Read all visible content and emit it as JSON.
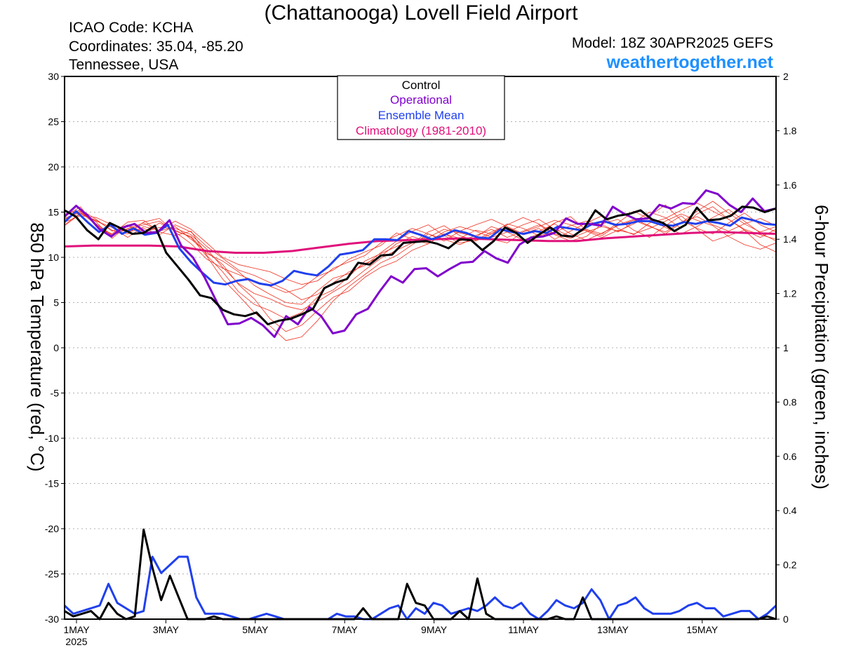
{
  "header": {
    "title": "(Chattanooga) Lovell Field Airport",
    "icao": "ICAO Code: KCHA",
    "coords": "Coordinates: 35.04, -85.20",
    "region": "Tennessee, USA",
    "model": "Model: 18Z 30APR2025 GEFS",
    "site": "weathertogether.net"
  },
  "colors": {
    "control": "#000000",
    "operational": "#8000cc",
    "ensemble_mean": "#2040ee",
    "climatology": "#e0107a",
    "members_temp": "#f03020",
    "members_precip": "#22dd22"
  },
  "chart_data": {
    "type": "line",
    "left_axis": {
      "label": "850 hPa Temperature (red, °C)",
      "range": [
        -30,
        30
      ],
      "ticks": [
        "30",
        "25",
        "20",
        "15",
        "10",
        "5",
        "0",
        "-5",
        "-10",
        "-15",
        "-20",
        "-25",
        "-30"
      ]
    },
    "right_axis": {
      "label": "6-hour Precipitation (green, inches)",
      "range": [
        0,
        2
      ],
      "ticks": [
        "2",
        "1.8",
        "1.6",
        "1.4",
        "1.2",
        "1",
        "0.8",
        "0.6",
        "0.4",
        "0.2",
        "0"
      ]
    },
    "x_ticks": [
      "1MAY",
      "3MAY",
      "5MAY",
      "7MAY",
      "9MAY",
      "11MAY",
      "13MAY",
      "15MAY"
    ],
    "x_sub": "2025",
    "legend": [
      "Control",
      "Operational",
      "Ensemble Mean",
      "Climatology (1981-2010)"
    ],
    "grid": true,
    "temperature": {
      "control": [
        15.2,
        14.5,
        13.0,
        12.0,
        13.8,
        13.2,
        12.6,
        12.7,
        13.5,
        10.5,
        9.0,
        7.5,
        5.8,
        5.5,
        4.2,
        3.7,
        3.5,
        3.9,
        2.6,
        3.0,
        3.2,
        3.7,
        4.3,
        6.6,
        7.2,
        7.6,
        9.4,
        9.2,
        10.2,
        10.3,
        11.6,
        11.7,
        11.8,
        11.5,
        11.0,
        12.0,
        11.9,
        10.8,
        11.8,
        13.3,
        12.7,
        11.6,
        12.5,
        13.3,
        12.4,
        12.3,
        13.2,
        15.2,
        14.2,
        14.6,
        14.8,
        15.2,
        14.2,
        13.8,
        12.9,
        13.6,
        15.5,
        14.1,
        14.2,
        14.6,
        15.6,
        15.5,
        15.0,
        15.4
      ],
      "operational": [
        14.5,
        15.7,
        14.6,
        13.1,
        12.3,
        13.3,
        13.7,
        12.7,
        12.8,
        14.1,
        11.3,
        10.0,
        7.8,
        5.2,
        2.6,
        2.7,
        3.3,
        2.5,
        1.2,
        3.5,
        2.6,
        4.5,
        3.5,
        1.6,
        1.9,
        3.7,
        4.3,
        6.2,
        7.9,
        7.2,
        8.7,
        8.8,
        7.9,
        8.7,
        9.4,
        9.5,
        10.7,
        9.9,
        9.4,
        11.4,
        12.2,
        12.3,
        12.7,
        14.3,
        13.7,
        13.7,
        13.5,
        15.6,
        14.8,
        14.2,
        14.3,
        15.8,
        15.4,
        16.0,
        15.9,
        17.4,
        17.0,
        15.8,
        15.0,
        16.5,
        15.1,
        15.4
      ],
      "ensemble_mean": [
        13.9,
        15.1,
        13.9,
        12.8,
        13.6,
        12.6,
        13.2,
        12.5,
        12.7,
        13.6,
        11.0,
        9.5,
        8.3,
        7.2,
        7.0,
        7.4,
        7.6,
        7.1,
        6.9,
        7.4,
        8.5,
        8.2,
        8.0,
        9.0,
        10.3,
        10.5,
        10.8,
        12.0,
        12.0,
        11.9,
        12.9,
        12.5,
        12.0,
        12.4,
        13.0,
        12.7,
        12.2,
        12.1,
        13.1,
        12.8,
        12.6,
        12.9,
        12.7,
        13.4,
        13.2,
        13.0,
        13.7,
        14.0,
        13.6,
        13.7,
        14.0,
        14.0,
        13.6,
        13.5,
        13.9,
        13.7,
        14.0,
        13.8,
        13.5,
        14.4,
        14.1,
        13.7,
        13.6
      ],
      "climatology": [
        11.2,
        11.3,
        11.3,
        11.3,
        11.2,
        10.7,
        10.5,
        10.5,
        10.7,
        11.1,
        11.5,
        11.8,
        11.9,
        12.0,
        12.1,
        12.0,
        11.9,
        11.8,
        11.8,
        12.1,
        12.3,
        12.5,
        12.7,
        12.8,
        12.7,
        12.6
      ],
      "members": [
        [
          14.2,
          15.0,
          13.6,
          12.4,
          13.2,
          13.8,
          12.9,
          13.4,
          12.0,
          10.6,
          9.2,
          7.0,
          5.4,
          3.2,
          1.8,
          2.5,
          4.1,
          5.6,
          6.3,
          7.8,
          8.9,
          9.6,
          10.8,
          11.5,
          12.6,
          11.8,
          12.4,
          13.1,
          12.2,
          12.9,
          13.6,
          12.5,
          11.8,
          12.3,
          13.7,
          14.2,
          13.0,
          12.2,
          13.5,
          14.6,
          13.1,
          11.8,
          12.4,
          13.0,
          11.4,
          10.6
        ],
        [
          13.5,
          14.8,
          14.1,
          13.0,
          12.6,
          13.9,
          14.3,
          12.8,
          11.5,
          9.8,
          8.8,
          8.1,
          7.4,
          6.8,
          6.1,
          6.6,
          7.9,
          8.6,
          9.8,
          10.6,
          11.3,
          12.7,
          12.0,
          11.5,
          12.6,
          12.1,
          13.0,
          12.6,
          13.7,
          13.2,
          12.4,
          12.8,
          13.5,
          14.0,
          13.6,
          12.8,
          13.9,
          15.0,
          14.4,
          13.2,
          14.8,
          15.6,
          14.2,
          13.1,
          12.5,
          12.0
        ],
        [
          14.8,
          15.2,
          13.9,
          12.1,
          13.5,
          12.6,
          13.8,
          13.0,
          12.2,
          10.1,
          7.6,
          5.8,
          3.9,
          2.4,
          0.8,
          1.2,
          3.0,
          5.2,
          6.8,
          8.1,
          9.4,
          10.2,
          11.4,
          12.6,
          12.0,
          11.4,
          12.2,
          13.4,
          12.8,
          11.9,
          12.6,
          13.8,
          14.5,
          13.0,
          12.4,
          13.6,
          14.2,
          13.5,
          12.6,
          13.8,
          15.1,
          16.2,
          14.9,
          13.7,
          12.8,
          13.4
        ],
        [
          13.9,
          14.6,
          14.4,
          13.6,
          12.8,
          13.2,
          12.5,
          13.6,
          12.8,
          11.2,
          9.9,
          8.6,
          8.0,
          7.2,
          6.4,
          5.3,
          5.9,
          7.2,
          8.4,
          9.1,
          10.5,
          11.8,
          12.9,
          13.6,
          12.4,
          11.6,
          11.9,
          12.8,
          13.6,
          14.4,
          13.7,
          12.6,
          12.1,
          12.8,
          13.4,
          12.9,
          13.7,
          14.6,
          15.8,
          14.1,
          13.2,
          12.6,
          13.8,
          14.9,
          13.6,
          12.8
        ],
        [
          14.5,
          15.6,
          13.4,
          12.6,
          13.9,
          14.1,
          12.8,
          12.4,
          12.9,
          10.2,
          8.4,
          6.2,
          4.8,
          4.1,
          3.2,
          3.9,
          5.6,
          6.4,
          7.9,
          9.6,
          10.4,
          11.2,
          11.9,
          12.2,
          13.1,
          12.7,
          12.3,
          12.0,
          11.6,
          12.8,
          13.4,
          14.1,
          13.6,
          12.9,
          12.2,
          13.0,
          12.6,
          13.2,
          14.0,
          14.8,
          14.1,
          13.5,
          12.3,
          11.4,
          10.9,
          11.6
        ],
        [
          13.6,
          14.9,
          14.0,
          13.3,
          12.2,
          13.4,
          13.0,
          14.0,
          13.1,
          11.6,
          10.0,
          9.2,
          8.8,
          8.4,
          7.6,
          7.0,
          7.4,
          8.8,
          9.5,
          10.2,
          11.6,
          12.4,
          13.2,
          12.6,
          11.8,
          12.9,
          13.6,
          14.2,
          13.4,
          12.6,
          13.2,
          12.0,
          12.9,
          13.8,
          14.6,
          13.2,
          12.5,
          13.8,
          14.3,
          15.2,
          16.0,
          15.1,
          14.2,
          13.0,
          12.2,
          13.1
        ],
        [
          14.0,
          15.3,
          14.2,
          12.9,
          13.6,
          12.8,
          13.3,
          13.2,
          12.5,
          10.9,
          8.9,
          7.1,
          6.0,
          5.4,
          4.6,
          4.2,
          5.1,
          6.2,
          7.2,
          8.6,
          9.9,
          10.8,
          11.6,
          12.8,
          13.5,
          12.4,
          11.8,
          12.6,
          13.3,
          12.5,
          12.9,
          13.7,
          12.6,
          11.9,
          12.7,
          13.5,
          14.1,
          13.4,
          12.8,
          13.9,
          14.5,
          13.6,
          12.9,
          13.7,
          14.3,
          13.5
        ],
        [
          14.3,
          15.1,
          13.7,
          12.5,
          13.1,
          13.6,
          14.0,
          12.9,
          12.3,
          10.4,
          9.6,
          8.4,
          6.9,
          5.9,
          5.0,
          4.8,
          6.3,
          7.7,
          8.2,
          9.3,
          10.1,
          11.5,
          12.3,
          11.7,
          12.8,
          13.4,
          12.9,
          12.2,
          12.8,
          13.6,
          14.2,
          13.1,
          12.3,
          13.1,
          12.6,
          13.8,
          15.1,
          14.2,
          13.3,
          12.6,
          13.4,
          14.4,
          15.3,
          14.0,
          12.7,
          11.8
        ]
      ]
    },
    "precipitation": {
      "control": [
        0.03,
        0.01,
        0.02,
        0.03,
        0.0,
        0.06,
        0.02,
        0.0,
        0.01,
        0.33,
        0.19,
        0.07,
        0.16,
        0.08,
        0.0,
        0.0,
        0.0,
        0.01,
        0.0,
        0.0,
        0.0,
        0.0,
        0.0,
        0.0,
        0.0,
        0.0,
        0.0,
        0.0,
        0.0,
        0.0,
        0.0,
        0.0,
        0.0,
        0.0,
        0.04,
        0.0,
        0.0,
        0.0,
        0.0,
        0.13,
        0.06,
        0.05,
        0.0,
        0.0,
        0.0,
        0.03,
        0.0,
        0.15,
        0.02,
        0.0,
        0.0,
        0.0,
        0.0,
        0.0,
        0.0,
        0.0,
        0.01,
        0.0,
        0.0,
        0.08,
        0.0,
        0.0,
        0.0,
        0.0,
        0.0,
        0.0,
        0.0,
        0.0,
        0.0,
        0.0,
        0.0,
        0.0,
        0.0,
        0.0,
        0.0,
        0.0,
        0.0,
        0.0,
        0.0,
        0.0,
        0.01,
        0.0
      ],
      "ensemble_mean": [
        0.05,
        0.02,
        0.03,
        0.04,
        0.05,
        0.13,
        0.06,
        0.04,
        0.02,
        0.03,
        0.23,
        0.17,
        0.2,
        0.23,
        0.23,
        0.08,
        0.02,
        0.02,
        0.02,
        0.01,
        0.0,
        0.0,
        0.01,
        0.02,
        0.01,
        0.0,
        0.0,
        0.0,
        0.0,
        0.0,
        0.0,
        0.02,
        0.01,
        0.01,
        0.0,
        0.0,
        0.02,
        0.04,
        0.05,
        0.0,
        0.04,
        0.02,
        0.06,
        0.05,
        0.02,
        0.03,
        0.04,
        0.03,
        0.05,
        0.08,
        0.05,
        0.04,
        0.06,
        0.02,
        0.0,
        0.03,
        0.07,
        0.05,
        0.04,
        0.06,
        0.11,
        0.07,
        0.0,
        0.05,
        0.06,
        0.08,
        0.04,
        0.02,
        0.02,
        0.02,
        0.03,
        0.05,
        0.06,
        0.04,
        0.04,
        0.01,
        0.02,
        0.03,
        0.03,
        0.0,
        0.02,
        0.05
      ]
    }
  }
}
